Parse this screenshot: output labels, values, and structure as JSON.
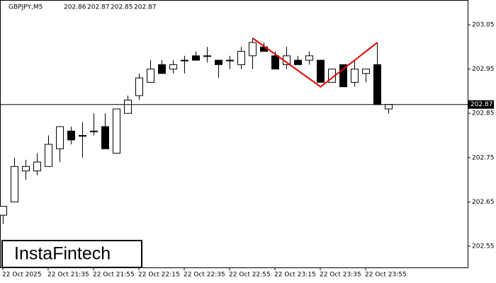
{
  "chart_data": {
    "type": "candlestick",
    "symbol": "GBPJPY,M5",
    "header_ohlc": [
      202.86,
      202.87,
      202.85,
      202.87
    ],
    "logo": "InstaFintech",
    "categories": [
      "22 Oct 2025",
      null,
      null,
      null,
      "22 Oct 21:35",
      null,
      null,
      null,
      "22 Oct 21:55",
      null,
      null,
      null,
      "22 Oct 22:15",
      null,
      null,
      null,
      "22 Oct 22:35",
      null,
      null,
      null,
      "22 Oct 22:55",
      null,
      null,
      null,
      "22 Oct 23:15",
      null,
      null,
      null,
      "22 Oct 23:35",
      null,
      null,
      null,
      "22 Oct 23:55",
      null,
      null
    ],
    "open": [
      202.62,
      202.65,
      202.72,
      202.72,
      202.73,
      202.77,
      202.81,
      202.8,
      202.81,
      202.82,
      202.76,
      202.85,
      202.89,
      202.92,
      202.96,
      202.95,
      202.97,
      202.98,
      202.98,
      202.97,
      202.97,
      202.96,
      202.98,
      203.0,
      202.98,
      202.96,
      202.97,
      202.97,
      202.97,
      202.92,
      202.96,
      202.92,
      202.94,
      202.96,
      202.86
    ],
    "high": [
      202.64,
      202.75,
      202.745,
      202.76,
      202.8,
      202.82,
      202.82,
      202.83,
      202.85,
      202.85,
      202.86,
      202.89,
      202.94,
      202.97,
      202.97,
      202.97,
      202.98,
      202.99,
      203.0,
      202.97,
      202.98,
      203.0,
      203.02,
      203.01,
      202.99,
      203.0,
      202.98,
      202.99,
      202.97,
      202.95,
      202.96,
      202.97,
      202.95,
      203.01,
      202.87
    ],
    "low": [
      202.6,
      202.65,
      202.7,
      202.71,
      202.73,
      202.74,
      202.78,
      202.75,
      202.8,
      202.77,
      202.76,
      202.85,
      202.88,
      202.92,
      202.94,
      202.94,
      202.94,
      202.97,
      202.965,
      202.93,
      202.95,
      202.95,
      202.95,
      202.99,
      202.95,
      202.95,
      202.96,
      202.96,
      202.92,
      202.92,
      202.91,
      202.91,
      202.92,
      202.87,
      202.85
    ],
    "close": [
      202.64,
      202.73,
      202.73,
      202.74,
      202.78,
      202.82,
      202.79,
      202.8,
      202.81,
      202.77,
      202.86,
      202.88,
      202.93,
      202.95,
      202.94,
      202.96,
      202.97,
      202.97,
      202.98,
      202.96,
      202.97,
      202.99,
      203.01,
      202.99,
      202.95,
      202.98,
      202.96,
      202.98,
      202.92,
      202.95,
      202.91,
      202.95,
      202.95,
      202.87,
      202.87
    ],
    "pattern": {
      "color": "#e00000",
      "x": [
        22,
        28,
        33
      ],
      "values": [
        203.02,
        202.91,
        203.01
      ]
    },
    "current_price": 202.87,
    "ylim": [
      202.502,
      203.106
    ],
    "yticks": [
      203.05,
      202.95,
      202.85,
      202.75,
      202.65,
      202.55
    ]
  }
}
